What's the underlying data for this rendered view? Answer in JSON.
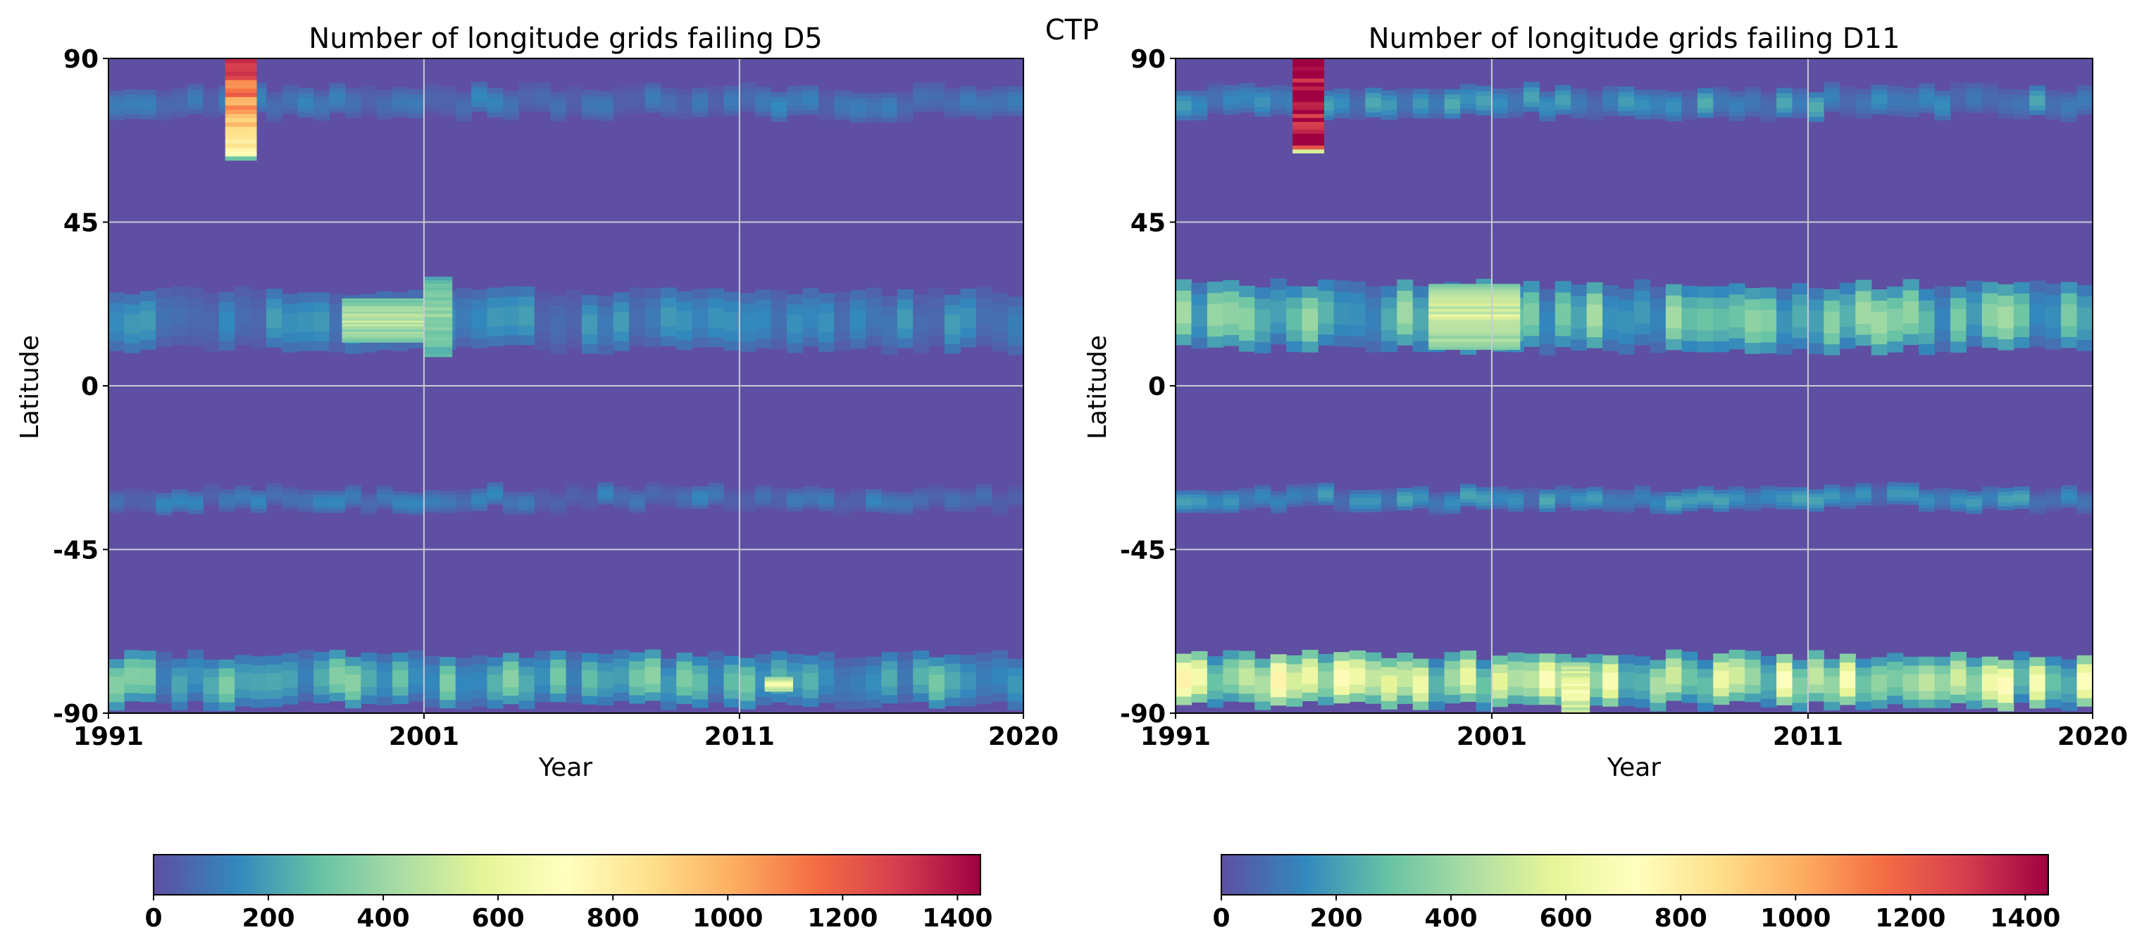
{
  "figure": {
    "suptitle": "CTP"
  },
  "colormap": {
    "name": "Spectral_r",
    "stops": [
      "#5e4fa2",
      "#3288bd",
      "#66c2a5",
      "#abdda4",
      "#e6f598",
      "#ffffbf",
      "#fee08b",
      "#fdae61",
      "#f46d43",
      "#d53e4f",
      "#9e0142"
    ]
  },
  "chart_data": [
    {
      "type": "heatmap",
      "title": "Number of longitude grids failing D5",
      "xlabel": "Year",
      "ylabel": "Latitude",
      "xlim": [
        1991,
        2020
      ],
      "ylim": [
        -90,
        90
      ],
      "xticks": [
        "1991",
        "2001",
        "2011",
        "2020"
      ],
      "yticks": [
        "90",
        "45",
        "0",
        "-45",
        "-90"
      ],
      "grid": true,
      "colorbar": {
        "range": [
          0,
          1440
        ],
        "ticks": [
          "0",
          "200",
          "400",
          "600",
          "800",
          "1000",
          "1200",
          "1400"
        ]
      },
      "bands": [
        {
          "lat": [
            74,
            82
          ],
          "value": 110
        },
        {
          "lat": [
            10,
            26
          ],
          "value": 150
        },
        {
          "lat": [
            -34,
            -28
          ],
          "value": 110
        },
        {
          "lat": [
            -88,
            -74
          ],
          "value": 280
        }
      ],
      "events": [
        {
          "year": [
            1994.7,
            1995.7
          ],
          "lat": [
            62,
            90
          ],
          "value_top": 1300,
          "value_bottom": 750
        },
        {
          "year": [
            1998.4,
            2001.0
          ],
          "lat": [
            12,
            24
          ],
          "value": 480
        },
        {
          "year": [
            2001.0,
            2001.9
          ],
          "lat": [
            8,
            30
          ],
          "value": 380
        },
        {
          "year": [
            2011.8,
            2012.7
          ],
          "lat": [
            -84,
            -80
          ],
          "value": 640
        }
      ]
    },
    {
      "type": "heatmap",
      "title": "Number of longitude grids failing D11",
      "xlabel": "Year",
      "ylabel": "Latitude",
      "xlim": [
        1991,
        2020
      ],
      "ylim": [
        -90,
        90
      ],
      "xticks": [
        "1991",
        "2001",
        "2011",
        "2020"
      ],
      "yticks": [
        "90",
        "45",
        "0",
        "-45",
        "-90"
      ],
      "grid": true,
      "colorbar": {
        "range": [
          0,
          1440
        ],
        "ticks": [
          "0",
          "200",
          "400",
          "600",
          "800",
          "1000",
          "1200",
          "1400"
        ]
      },
      "bands": [
        {
          "lat": [
            74,
            82
          ],
          "value": 180
        },
        {
          "lat": [
            10,
            28
          ],
          "value": 330
        },
        {
          "lat": [
            -34,
            -28
          ],
          "value": 170
        },
        {
          "lat": [
            -88,
            -74
          ],
          "value": 600
        }
      ],
      "events": [
        {
          "year": [
            1994.7,
            1995.7
          ],
          "lat": [
            64,
            90
          ],
          "value_top": 1440,
          "value_bottom": 1350
        },
        {
          "year": [
            1999.0,
            2001.9
          ],
          "lat": [
            10,
            28
          ],
          "value": 560
        },
        {
          "year": [
            2003.2,
            2004.1
          ],
          "lat": [
            -90,
            -76
          ],
          "value": 680
        }
      ]
    }
  ]
}
